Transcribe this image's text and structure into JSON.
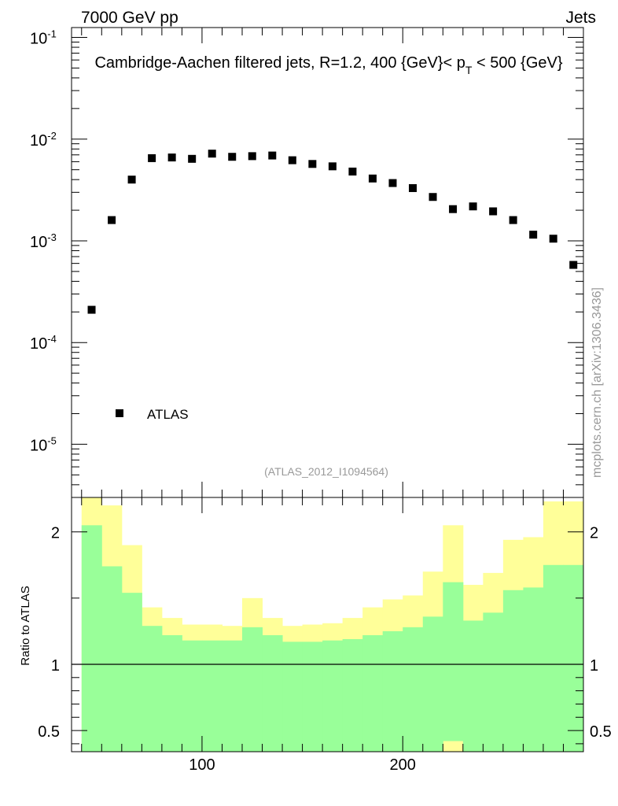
{
  "header": {
    "left": "7000 GeV pp",
    "right": "Jets"
  },
  "side_label": "mcplots.cern.ch [arXiv:1306.3436]",
  "analysis_tag": "(ATLAS_2012_I1094564)",
  "colors": {
    "band_inner": "#99ff99",
    "band_outer": "#ffff99",
    "marker": "#000000",
    "tag": "#999999"
  },
  "chart_data": [
    {
      "type": "scatter",
      "title": "Cambridge-Aachen filtered jets, R=1.2, 400 {GeV}< p_T < 500 {GeV}",
      "title_main": "Cambridge-Aachen filtered jets, R=1.2, 400 {GeV}< p",
      "title_sub": "T",
      "title_end": " < 500 {GeV}",
      "yscale": "log",
      "xlim": [
        35,
        290
      ],
      "ylim": [
        3e-06,
        0.125
      ],
      "ytick_labels": [
        {
          "base": "10",
          "exp": "-1",
          "value": 0.1
        },
        {
          "base": "10",
          "exp": "-2",
          "value": 0.01
        },
        {
          "base": "10",
          "exp": "-3",
          "value": 0.001
        },
        {
          "base": "10",
          "exp": "-4",
          "value": 0.0001
        },
        {
          "base": "10",
          "exp": "-5",
          "value": 1e-05
        }
      ],
      "legend": {
        "label": "ATLAS",
        "position": "bottom-left"
      },
      "series": [
        {
          "name": "ATLAS",
          "x": [
            45,
            55,
            65,
            75,
            85,
            95,
            105,
            115,
            125,
            135,
            145,
            155,
            165,
            175,
            185,
            195,
            205,
            215,
            225,
            235,
            245,
            255,
            265,
            275,
            285
          ],
          "y": [
            0.00021,
            0.0016,
            0.004,
            0.0065,
            0.0066,
            0.0064,
            0.0072,
            0.0067,
            0.0068,
            0.0069,
            0.0062,
            0.0057,
            0.0054,
            0.0048,
            0.0041,
            0.0037,
            0.0033,
            0.0027,
            0.00205,
            0.00218,
            0.00195,
            0.0016,
            0.00115,
            0.00105,
            0.00058
          ]
        }
      ]
    },
    {
      "type": "area",
      "ylabel": "Ratio to ATLAS",
      "xlim": [
        35,
        290
      ],
      "ylim": [
        0.34,
        2.26
      ],
      "reference_line": 1,
      "yticks": [
        0.5,
        1,
        2
      ],
      "ytick_labels": [
        "0.5",
        "1",
        "2"
      ],
      "xticks": [
        100,
        200
      ],
      "xtick_labels": [
        "100",
        "200"
      ],
      "bin_edges": [
        40,
        50,
        60,
        70,
        80,
        90,
        100,
        110,
        120,
        130,
        140,
        150,
        160,
        170,
        180,
        190,
        200,
        210,
        220,
        230,
        240,
        250,
        260,
        270,
        280,
        290
      ],
      "bands": [
        {
          "name": "outer",
          "upper": [
            2.26,
            2.2,
            1.9,
            1.43,
            1.35,
            1.3,
            1.3,
            1.29,
            1.5,
            1.35,
            1.29,
            1.3,
            1.31,
            1.35,
            1.43,
            1.49,
            1.52,
            1.7,
            2.05,
            1.6,
            1.69,
            1.94,
            1.96,
            2.23,
            2.23
          ],
          "lower": [
            0.34,
            0.34,
            0.56,
            0.57,
            0.72,
            0.8,
            0.81,
            0.81,
            0.61,
            0.77,
            0.81,
            0.79,
            0.78,
            0.72,
            0.66,
            0.6,
            0.34,
            0.34,
            0.34,
            0.34,
            0.34,
            0.34,
            0.34,
            0.34,
            0.34
          ]
        },
        {
          "name": "inner",
          "upper": [
            2.05,
            1.74,
            1.54,
            1.29,
            1.22,
            1.18,
            1.18,
            1.18,
            1.28,
            1.22,
            1.17,
            1.17,
            1.18,
            1.19,
            1.22,
            1.25,
            1.28,
            1.36,
            1.62,
            1.33,
            1.39,
            1.56,
            1.58,
            1.75,
            1.75
          ],
          "lower": [
            0.34,
            0.34,
            0.34,
            0.34,
            0.34,
            0.34,
            0.34,
            0.34,
            0.34,
            0.34,
            0.34,
            0.34,
            0.34,
            0.34,
            0.34,
            0.34,
            0.34,
            0.34,
            0.42,
            0.34,
            0.34,
            0.34,
            0.34,
            0.34,
            0.34
          ]
        }
      ]
    }
  ]
}
